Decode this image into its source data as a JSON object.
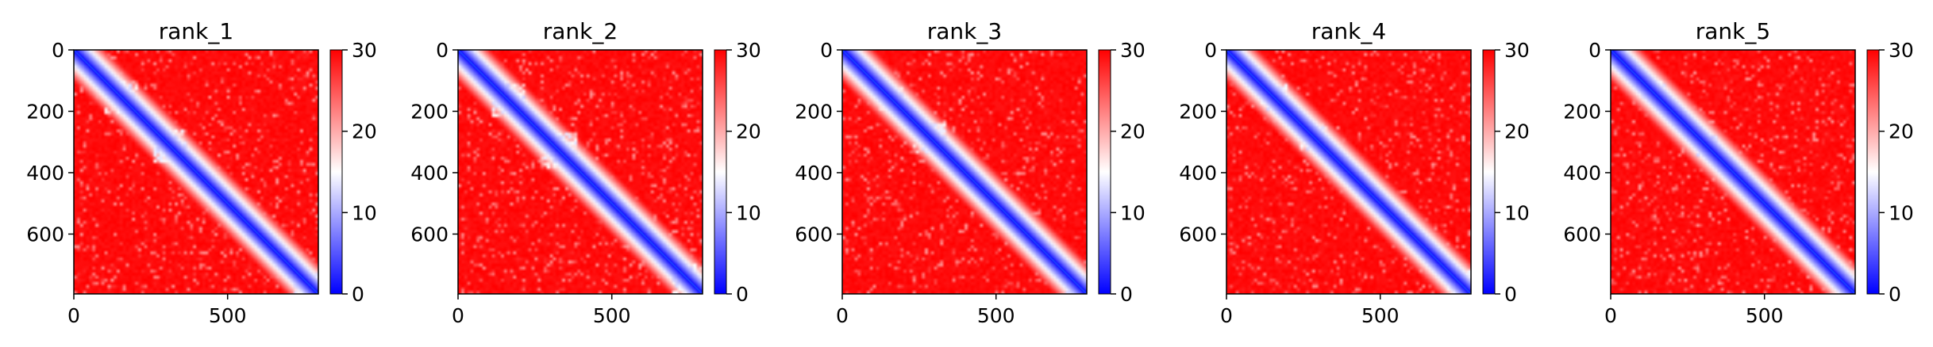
{
  "colors": {
    "low": "#0000ff",
    "mid": "#ffffff",
    "high": "#ff0000",
    "axis": "#000000"
  },
  "chart_data": [
    {
      "type": "heatmap",
      "title": "rank_1",
      "matrix_size": 795,
      "xlim": [
        0,
        795
      ],
      "ylim": [
        795,
        0
      ],
      "xticks": [
        0,
        500
      ],
      "yticks": [
        0,
        200,
        400,
        600
      ],
      "colorbar": {
        "range": [
          0,
          30
        ],
        "ticks": [
          0,
          10,
          20,
          30
        ],
        "colormap": "bwr"
      },
      "domain_blocks": [
        [
          100,
          210
        ],
        [
          255,
          370
        ],
        [
          715,
          795
        ]
      ],
      "diagonal_value": 0,
      "background_value": 30
    },
    {
      "type": "heatmap",
      "title": "rank_2",
      "matrix_size": 795,
      "xlim": [
        0,
        795
      ],
      "ylim": [
        795,
        0
      ],
      "xticks": [
        0,
        500
      ],
      "yticks": [
        0,
        200,
        400,
        600
      ],
      "colorbar": {
        "range": [
          0,
          30
        ],
        "ticks": [
          0,
          10,
          20,
          30
        ],
        "colormap": "bwr"
      },
      "domain_blocks": [
        [
          110,
          220
        ],
        [
          270,
          390
        ],
        [
          700,
          795
        ]
      ],
      "diagonal_value": 0,
      "background_value": 30
    },
    {
      "type": "heatmap",
      "title": "rank_3",
      "matrix_size": 795,
      "xlim": [
        0,
        795
      ],
      "ylim": [
        795,
        0
      ],
      "xticks": [
        0,
        500
      ],
      "yticks": [
        0,
        200,
        400,
        600
      ],
      "colorbar": {
        "range": [
          0,
          30
        ],
        "ticks": [
          0,
          10,
          20,
          30
        ],
        "colormap": "bwr"
      },
      "domain_blocks": [
        [
          120,
          200
        ],
        [
          230,
          340
        ],
        [
          730,
          795
        ]
      ],
      "diagonal_value": 0,
      "background_value": 30
    },
    {
      "type": "heatmap",
      "title": "rank_4",
      "matrix_size": 795,
      "xlim": [
        0,
        795
      ],
      "ylim": [
        795,
        0
      ],
      "xticks": [
        0,
        500
      ],
      "yticks": [
        0,
        200,
        400,
        600
      ],
      "colorbar": {
        "range": [
          0,
          30
        ],
        "ticks": [
          0,
          10,
          20,
          30
        ],
        "colormap": "bwr"
      },
      "domain_blocks": [
        [
          110,
          200
        ],
        [
          240,
          330
        ],
        [
          720,
          795
        ]
      ],
      "diagonal_value": 0,
      "background_value": 30
    },
    {
      "type": "heatmap",
      "title": "rank_5",
      "matrix_size": 795,
      "xlim": [
        0,
        795
      ],
      "ylim": [
        795,
        0
      ],
      "xticks": [
        0,
        500
      ],
      "yticks": [
        0,
        200,
        400,
        600
      ],
      "colorbar": {
        "range": [
          0,
          30
        ],
        "ticks": [
          0,
          10,
          20,
          30
        ],
        "colormap": "bwr"
      },
      "domain_blocks": [
        [
          100,
          180
        ],
        [
          280,
          350
        ],
        [
          720,
          795
        ]
      ],
      "diagonal_value": 0,
      "background_value": 30
    }
  ]
}
